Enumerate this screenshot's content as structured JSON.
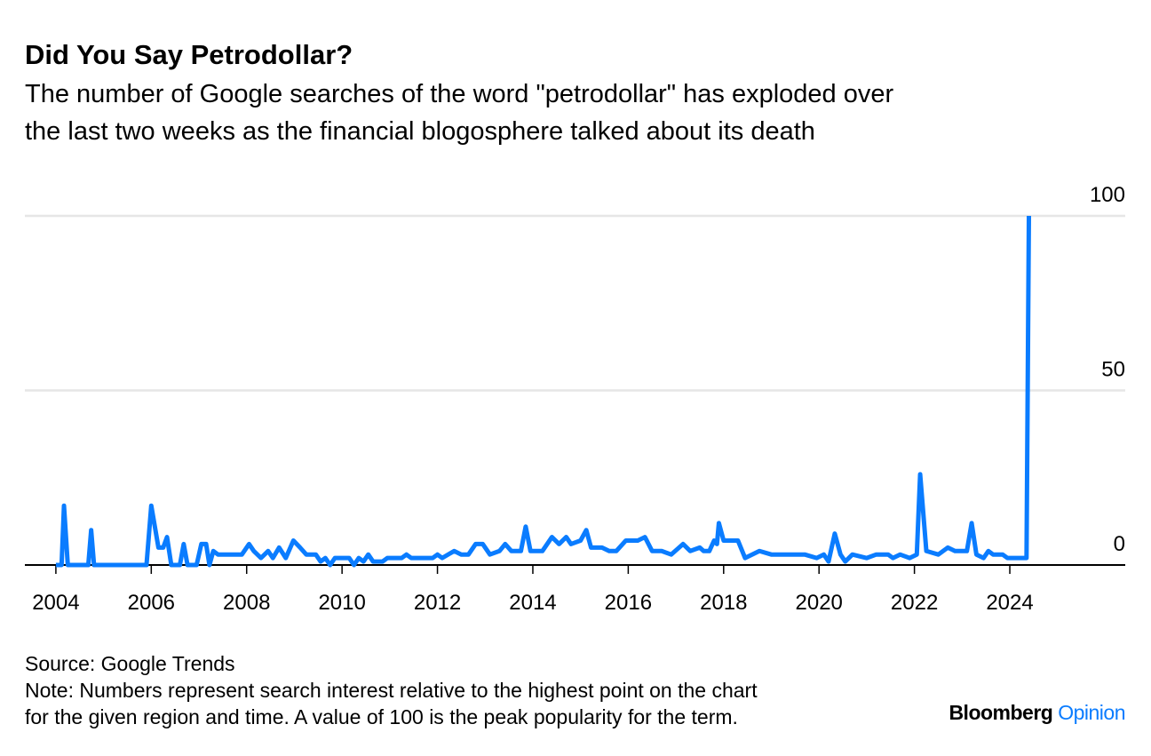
{
  "chart_data": {
    "type": "line",
    "title": "Did You Say Petrodollar?",
    "subtitle": [
      "The number of Google searches of the word \"petrodollar\" has exploded over",
      "the last two weeks as the financial blogosphere talked about its death"
    ],
    "source": "Source: Google Trends",
    "note": [
      "Note: Numbers represent search interest relative to the highest point on the chart",
      "for the given region and time. A value of 100 is the peak popularity for the term."
    ],
    "brand": [
      "Bloomberg",
      "Opinion"
    ],
    "x": [
      2004.0,
      2004.12,
      2004.17,
      2004.25,
      2004.68,
      2004.74,
      2004.8,
      2005.9,
      2006.0,
      2006.15,
      2006.25,
      2006.33,
      2006.42,
      2006.6,
      2006.68,
      2006.76,
      2006.95,
      2007.05,
      2007.15,
      2007.22,
      2007.3,
      2007.4,
      2007.9,
      2008.05,
      2008.15,
      2008.3,
      2008.45,
      2008.55,
      2008.68,
      2008.82,
      2008.98,
      2009.12,
      2009.25,
      2009.45,
      2009.55,
      2009.65,
      2009.75,
      2009.85,
      2010.15,
      2010.25,
      2010.35,
      2010.45,
      2010.55,
      2010.65,
      2010.85,
      2010.95,
      2011.25,
      2011.35,
      2011.45,
      2011.9,
      2012.0,
      2012.1,
      2012.35,
      2012.5,
      2012.65,
      2012.8,
      2012.95,
      2013.1,
      2013.3,
      2013.42,
      2013.55,
      2013.75,
      2013.85,
      2013.95,
      2014.2,
      2014.4,
      2014.55,
      2014.7,
      2014.8,
      2015.0,
      2015.12,
      2015.22,
      2015.45,
      2015.6,
      2015.75,
      2015.95,
      2016.2,
      2016.35,
      2016.5,
      2016.7,
      2016.9,
      2017.15,
      2017.3,
      2017.5,
      2017.58,
      2017.7,
      2017.8,
      2017.86,
      2017.9,
      2018.0,
      2018.3,
      2018.45,
      2018.75,
      2019.0,
      2019.7,
      2019.95,
      2020.1,
      2020.2,
      2020.33,
      2020.45,
      2020.55,
      2020.7,
      2021.0,
      2021.2,
      2021.45,
      2021.55,
      2021.7,
      2021.9,
      2022.05,
      2022.12,
      2022.25,
      2022.5,
      2022.7,
      2022.85,
      2023.1,
      2023.2,
      2023.3,
      2023.45,
      2023.55,
      2023.65,
      2023.85,
      2023.95,
      2024.35,
      2024.4
    ],
    "series": [
      {
        "name": "petrodollar",
        "color": "#0a7cff",
        "values": [
          0,
          0,
          17,
          0,
          0,
          10,
          0,
          0,
          17,
          5,
          5,
          8,
          0,
          0,
          6,
          0,
          0,
          6,
          6,
          0,
          4,
          3,
          3,
          6,
          4,
          2,
          4,
          2,
          5,
          2,
          7,
          5,
          3,
          3,
          1,
          2,
          0,
          2,
          2,
          0,
          2,
          1,
          3,
          1,
          1,
          2,
          2,
          3,
          2,
          2,
          3,
          2,
          4,
          3,
          3,
          6,
          6,
          3,
          4,
          6,
          4,
          4,
          11,
          4,
          4,
          8,
          6,
          8,
          6,
          7,
          10,
          5,
          5,
          4,
          4,
          7,
          7,
          8,
          4,
          4,
          3,
          6,
          4,
          5,
          4,
          4,
          7,
          6,
          12,
          7,
          7,
          2,
          4,
          3,
          3,
          2,
          3,
          1,
          9,
          3,
          1,
          3,
          2,
          3,
          3,
          2,
          3,
          2,
          3,
          26,
          4,
          3,
          5,
          4,
          4,
          12,
          3,
          2,
          4,
          3,
          3,
          2,
          2,
          100
        ]
      }
    ],
    "xlim": [
      2003.35,
      2026.42
    ],
    "xticks": [
      2004,
      2006,
      2008,
      2010,
      2012,
      2014,
      2016,
      2018,
      2020,
      2022,
      2024
    ],
    "ylim": [
      0,
      100
    ],
    "yticks": [
      0,
      50,
      100
    ],
    "grid": true
  }
}
